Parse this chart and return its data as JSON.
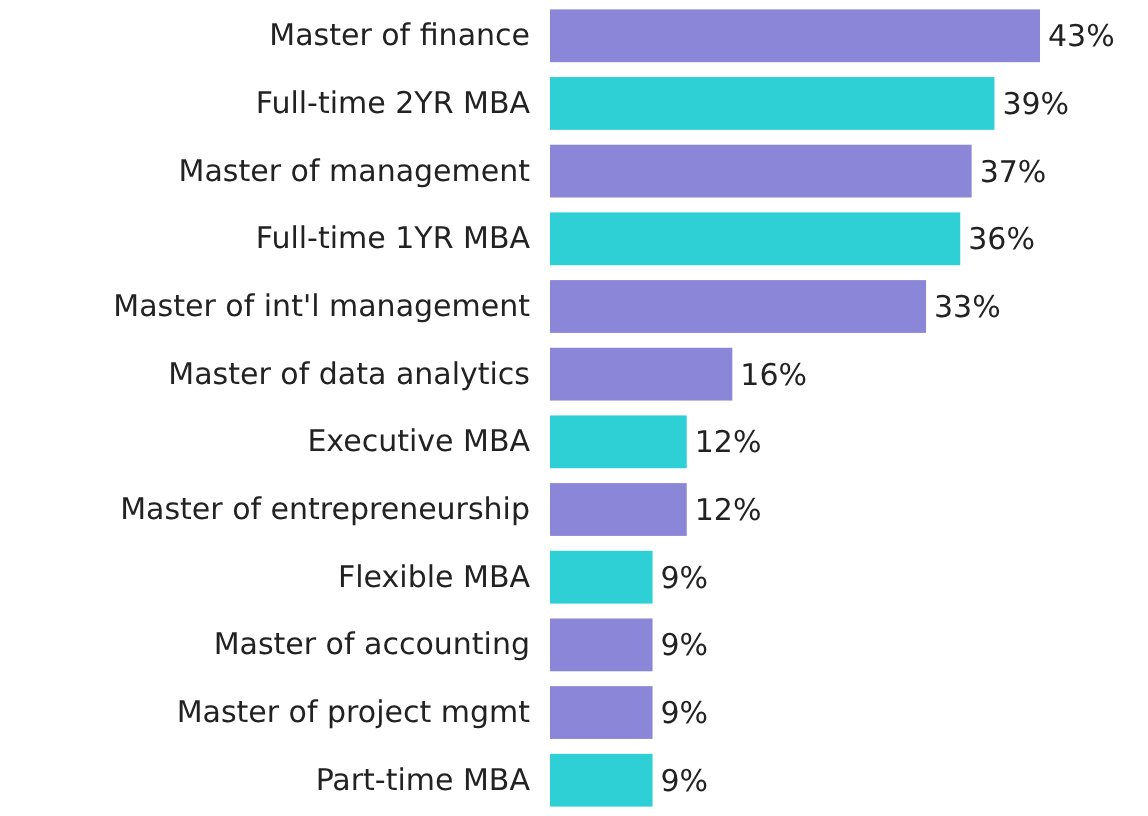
{
  "chart_data": {
    "type": "bar",
    "orientation": "horizontal",
    "categories": [
      "Master of finance",
      "Full-time 2YR MBA",
      "Master of management",
      "Full-time 1YR MBA",
      "Master of int'l management",
      "Master of data analytics",
      "Executive MBA",
      "Master of entrepreneurship",
      "Flexible MBA",
      "Master of accounting",
      "Master of project mgmt",
      "Part-time MBA"
    ],
    "values": [
      43,
      39,
      37,
      36,
      33,
      16,
      12,
      12,
      9,
      9,
      9,
      9
    ],
    "value_labels": [
      "43%",
      "39%",
      "37%",
      "36%",
      "33%",
      "16%",
      "12%",
      "12%",
      "9%",
      "9%",
      "9%",
      "9%"
    ],
    "colors": [
      "#8b86d8",
      "#2ecfd5",
      "#8b86d8",
      "#2ecfd5",
      "#8b86d8",
      "#8b86d8",
      "#2ecfd5",
      "#8b86d8",
      "#2ecfd5",
      "#8b86d8",
      "#8b86d8",
      "#2ecfd5"
    ]
  }
}
